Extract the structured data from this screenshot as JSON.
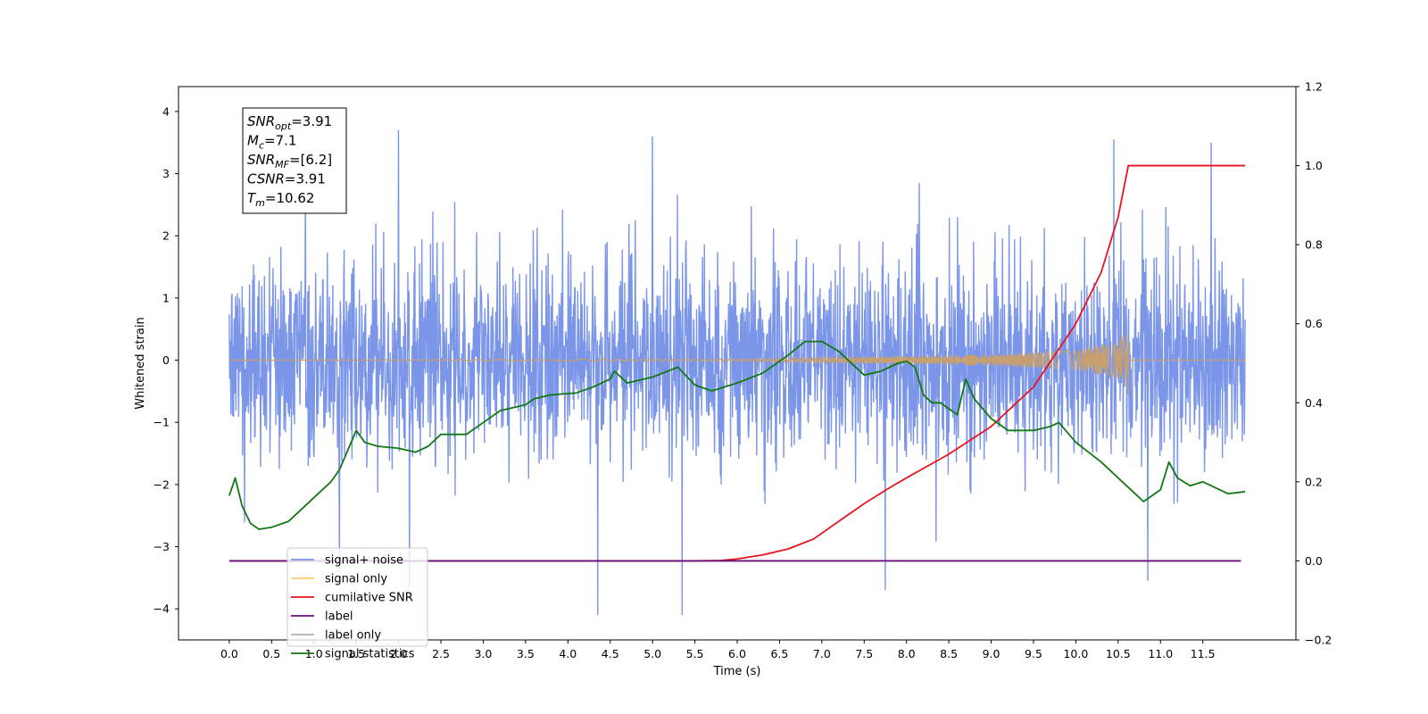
{
  "chart_data": {
    "type": "line",
    "title": "",
    "xlabel": "Time (s)",
    "ylabel": "Whitened strain",
    "y2label": "",
    "xlim": [
      -0.6,
      12.6
    ],
    "ylim": [
      -4.5,
      4.4
    ],
    "y2lim": [
      -0.2,
      1.2
    ],
    "xticks": [
      "0.0",
      "0.5",
      "1.0",
      "1.5",
      "2.0",
      "2.5",
      "3.0",
      "3.5",
      "4.0",
      "4.5",
      "5.0",
      "5.5",
      "6.0",
      "6.5",
      "7.0",
      "7.5",
      "8.0",
      "8.5",
      "9.0",
      "9.5",
      "10.0",
      "10.5",
      "11.0",
      "11.5"
    ],
    "yticks": [
      "−4",
      "−3",
      "−2",
      "−1",
      "0",
      "1",
      "2",
      "3",
      "4"
    ],
    "y2ticks": [
      "−0.2",
      "0.0",
      "0.2",
      "0.4",
      "0.6",
      "0.8",
      "1.0",
      "1.2"
    ],
    "grid": false,
    "legend_position": "lower-left",
    "annotation": [
      {
        "main": "SNR",
        "sub": "opt",
        "value": "=3.91"
      },
      {
        "main": "M",
        "sub": "c",
        "value": "=7.1"
      },
      {
        "main": "SNR",
        "sub": "MF",
        "value": "=[6.2]"
      },
      {
        "main": "CSNR",
        "sub": "",
        "value": "=3.91"
      },
      {
        "main": "T",
        "sub": "m",
        "value": "=10.62"
      }
    ],
    "series": [
      {
        "name": "signal+ noise",
        "axis": "left",
        "color": "#7b96e8",
        "style": "noise",
        "x_range": [
          0.0,
          12.0
        ],
        "typical_envelope": [
          -1.6,
          1.6
        ],
        "spikes": [
          [
            0.9,
            3.2
          ],
          [
            1.3,
            -3.4
          ],
          [
            2.0,
            3.7
          ],
          [
            4.35,
            -4.1
          ],
          [
            5.0,
            3.6
          ],
          [
            5.35,
            -4.1
          ],
          [
            7.75,
            -3.7
          ],
          [
            10.45,
            3.55
          ],
          [
            10.85,
            -3.55
          ],
          [
            11.6,
            3.5
          ]
        ]
      },
      {
        "name": "signal only",
        "axis": "left",
        "color": "#c8a070",
        "style": "chirp",
        "x": [
          0.0,
          6.0,
          8.0,
          9.0,
          10.0,
          10.5,
          10.62,
          12.0
        ],
        "amplitude": [
          0.0,
          0.02,
          0.06,
          0.09,
          0.16,
          0.3,
          0.5,
          0.0
        ]
      },
      {
        "name": "cumilative SNR",
        "axis": "right",
        "color": "#e8141e",
        "x": [
          0.0,
          5.5,
          5.8,
          6.0,
          6.3,
          6.6,
          6.9,
          7.2,
          7.5,
          7.8,
          8.0,
          8.5,
          9.0,
          9.5,
          10.0,
          10.3,
          10.5,
          10.62,
          12.0
        ],
        "values": [
          0.0,
          0.0,
          0.001,
          0.005,
          0.015,
          0.03,
          0.055,
          0.1,
          0.145,
          0.185,
          0.21,
          0.27,
          0.34,
          0.44,
          0.6,
          0.73,
          0.87,
          1.0,
          1.0
        ]
      },
      {
        "name": "label",
        "axis": "right",
        "color": "#6a0f78",
        "x": [
          0.0,
          11.95
        ],
        "values": [
          0.0,
          0.0
        ]
      },
      {
        "name": "label only",
        "axis": "right",
        "color": "#b0b0b0",
        "x": [],
        "values": []
      },
      {
        "name": "signal statistics",
        "axis": "right",
        "color": "#127812",
        "x": [
          0.0,
          0.07,
          0.15,
          0.25,
          0.35,
          0.5,
          0.7,
          0.8,
          1.0,
          1.2,
          1.3,
          1.5,
          1.6,
          1.75,
          2.0,
          2.2,
          2.35,
          2.5,
          2.8,
          3.0,
          3.2,
          3.5,
          3.6,
          3.8,
          4.1,
          4.3,
          4.5,
          4.55,
          4.7,
          5.0,
          5.3,
          5.5,
          5.7,
          6.0,
          6.3,
          6.4,
          6.6,
          6.8,
          7.0,
          7.2,
          7.4,
          7.5,
          7.7,
          7.9,
          8.0,
          8.1,
          8.2,
          8.3,
          8.4,
          8.6,
          8.7,
          8.8,
          9.0,
          9.2,
          9.5,
          9.7,
          9.8,
          10.0,
          10.3,
          10.5,
          10.8,
          11.0,
          11.1,
          11.2,
          11.35,
          11.5,
          11.8,
          12.0
        ],
        "values": [
          0.165,
          0.21,
          0.14,
          0.095,
          0.08,
          0.085,
          0.1,
          0.12,
          0.16,
          0.2,
          0.23,
          0.33,
          0.3,
          0.29,
          0.285,
          0.275,
          0.29,
          0.32,
          0.32,
          0.35,
          0.38,
          0.395,
          0.41,
          0.42,
          0.425,
          0.44,
          0.46,
          0.48,
          0.45,
          0.465,
          0.49,
          0.445,
          0.43,
          0.45,
          0.475,
          0.49,
          0.52,
          0.555,
          0.555,
          0.53,
          0.49,
          0.47,
          0.48,
          0.5,
          0.505,
          0.49,
          0.42,
          0.4,
          0.4,
          0.37,
          0.46,
          0.41,
          0.36,
          0.33,
          0.33,
          0.34,
          0.35,
          0.3,
          0.25,
          0.21,
          0.15,
          0.18,
          0.25,
          0.21,
          0.19,
          0.2,
          0.17,
          0.175
        ]
      }
    ]
  }
}
